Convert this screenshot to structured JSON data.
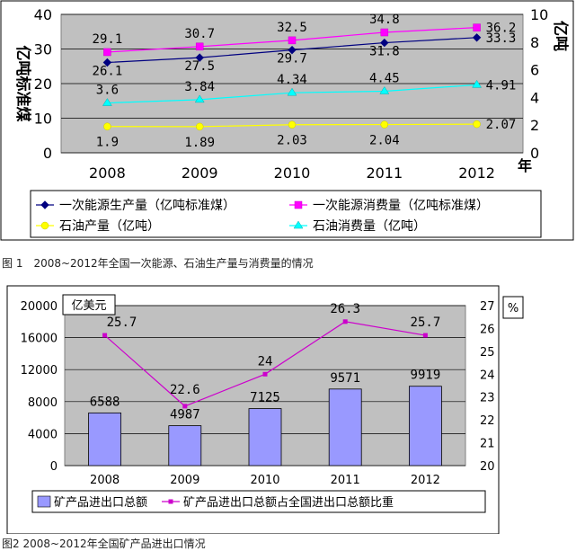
{
  "chart_data": [
    {
      "type": "line",
      "x": [
        "2008",
        "2009",
        "2010",
        "2011",
        "2012"
      ],
      "xlabel": "年",
      "ylabel": "亿吨标准煤",
      "y2label": "亿吨",
      "ylim": [
        0,
        40
      ],
      "y2lim": [
        0,
        10
      ],
      "yticks": [
        "0",
        "10",
        "20",
        "30",
        "40"
      ],
      "y2ticks": [
        "0",
        "2",
        "4",
        "6",
        "8",
        "10"
      ],
      "legend_position": "bottom",
      "series": [
        {
          "name": "一次能源生产量（亿吨标准煤）",
          "axis": "left",
          "values": [
            26.1,
            27.5,
            29.7,
            31.8,
            33.3
          ],
          "labels": [
            "26.1",
            "27.5",
            "29.7",
            "31.8",
            "33.3"
          ],
          "color": "#000080",
          "marker": "diamond"
        },
        {
          "name": "一次能源消费量（亿吨标准煤）",
          "axis": "left",
          "values": [
            29.1,
            30.7,
            32.5,
            34.8,
            36.2
          ],
          "labels": [
            "29.1",
            "30.7",
            "32.5",
            "34.8",
            "36.2"
          ],
          "color": "#ff00ff",
          "marker": "square"
        },
        {
          "name": "石油产量（亿吨）",
          "axis": "right",
          "values": [
            1.9,
            1.89,
            2.03,
            2.04,
            2.07
          ],
          "labels": [
            "1.9",
            "1.89",
            "2.03",
            "2.04",
            "2.07"
          ],
          "color": "#ffff00",
          "marker": "circle"
        },
        {
          "name": "石油消费量（亿吨）",
          "axis": "right",
          "values": [
            3.6,
            3.84,
            4.34,
            4.45,
            4.91
          ],
          "labels": [
            "3.6",
            "3.84",
            "4.34",
            "4.45",
            "4.91"
          ],
          "color": "#00ffff",
          "marker": "triangle"
        }
      ],
      "caption": "图 1　2008~2012年全国一次能源、石油生产量与消费量的情况",
      "colors": {
        "plot_bg": "#c0c0c0",
        "gridline": "#000000"
      }
    },
    {
      "type": "bar",
      "categories": [
        "2008",
        "2009",
        "2010",
        "2011",
        "2012"
      ],
      "ylabel": "亿美元",
      "y2label": "%",
      "ylim": [
        0,
        20000
      ],
      "y2lim": [
        20,
        27
      ],
      "yticks": [
        "0",
        "4000",
        "8000",
        "12000",
        "16000",
        "20000"
      ],
      "y2ticks": [
        "20",
        "21",
        "22",
        "23",
        "24",
        "25",
        "26",
        "27"
      ],
      "legend_position": "bottom",
      "series": [
        {
          "name": "矿产品进出口总额",
          "kind": "bar",
          "axis": "left",
          "values": [
            6588,
            4987,
            7125,
            9571,
            9919
          ],
          "labels": [
            "6588",
            "4987",
            "7125",
            "9571",
            "9919"
          ],
          "color": "#9999ff"
        },
        {
          "name": "矿产品进出口总额占全国进出口总额比重",
          "kind": "line",
          "axis": "right",
          "values": [
            25.7,
            22.6,
            24,
            26.3,
            25.7
          ],
          "labels": [
            "25.7",
            "22.6",
            "24",
            "26.3",
            "25.7"
          ],
          "color": "#cc00cc"
        }
      ],
      "caption": "图2 2008~2012年全国矿产品进出口情况",
      "colors": {
        "plot_bg": "#c0c0c0",
        "gridline": "#000000"
      }
    }
  ]
}
